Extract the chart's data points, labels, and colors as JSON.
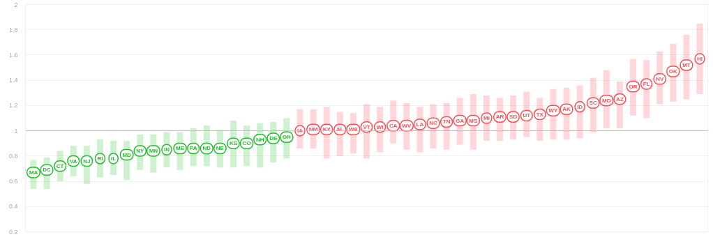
{
  "chart_data": {
    "type": "scatter",
    "categories": [
      "MA",
      "DC",
      "CT",
      "VA",
      "NJ",
      "RI",
      "IL",
      "MD",
      "NY",
      "MN",
      "IN",
      "ME",
      "PA",
      "ND",
      "NE",
      "KS",
      "CO",
      "NH",
      "DE",
      "OH",
      "IA",
      "NM",
      "KY",
      "AL",
      "WA",
      "VT",
      "WI",
      "CA",
      "WV",
      "LA",
      "NC",
      "TN",
      "GA",
      "MS",
      "MI",
      "AR",
      "SD",
      "UT",
      "TX",
      "WY",
      "AK",
      "ID",
      "SC",
      "MO",
      "AZ",
      "OR",
      "FL",
      "NV",
      "OK",
      "MT",
      "HI"
    ],
    "values": [
      0.67,
      0.69,
      0.72,
      0.76,
      0.76,
      0.78,
      0.78,
      0.81,
      0.84,
      0.84,
      0.85,
      0.86,
      0.86,
      0.86,
      0.86,
      0.9,
      0.9,
      0.93,
      0.94,
      0.95,
      1.0,
      1.01,
      1.01,
      1.01,
      1.01,
      1.03,
      1.03,
      1.04,
      1.04,
      1.05,
      1.06,
      1.07,
      1.08,
      1.08,
      1.1,
      1.11,
      1.11,
      1.12,
      1.13,
      1.16,
      1.17,
      1.19,
      1.22,
      1.24,
      1.25,
      1.35,
      1.37,
      1.41,
      1.47,
      1.52,
      1.57
    ],
    "errors": [
      [
        0.54,
        0.77
      ],
      [
        0.54,
        0.79
      ],
      [
        0.6,
        0.84
      ],
      [
        0.64,
        0.88
      ],
      [
        0.58,
        0.88
      ],
      [
        0.63,
        0.93
      ],
      [
        0.65,
        0.92
      ],
      [
        0.61,
        0.92
      ],
      [
        0.69,
        0.97
      ],
      [
        0.67,
        0.97
      ],
      [
        0.71,
        0.99
      ],
      [
        0.69,
        0.99
      ],
      [
        0.72,
        1.02
      ],
      [
        0.72,
        1.04
      ],
      [
        0.71,
        1.0
      ],
      [
        0.71,
        1.08
      ],
      [
        0.72,
        1.04
      ],
      [
        0.71,
        1.06
      ],
      [
        0.75,
        1.07
      ],
      [
        0.78,
        1.1
      ],
      [
        0.86,
        1.17
      ],
      [
        0.86,
        1.17
      ],
      [
        0.78,
        1.19
      ],
      [
        0.8,
        1.15
      ],
      [
        0.82,
        1.14
      ],
      [
        0.78,
        1.21
      ],
      [
        0.83,
        1.19
      ],
      [
        0.9,
        1.24
      ],
      [
        0.85,
        1.22
      ],
      [
        0.83,
        1.19
      ],
      [
        0.86,
        1.21
      ],
      [
        0.85,
        1.22
      ],
      [
        0.89,
        1.26
      ],
      [
        0.85,
        1.29
      ],
      [
        0.92,
        1.28
      ],
      [
        0.92,
        1.26
      ],
      [
        0.93,
        1.28
      ],
      [
        0.95,
        1.31
      ],
      [
        0.92,
        1.26
      ],
      [
        0.93,
        1.33
      ],
      [
        0.93,
        1.34
      ],
      [
        0.94,
        1.36
      ],
      [
        0.99,
        1.42
      ],
      [
        1.02,
        1.48
      ],
      [
        1.02,
        1.39
      ],
      [
        1.12,
        1.57
      ],
      [
        1.1,
        1.56
      ],
      [
        1.21,
        1.63
      ],
      [
        1.23,
        1.69
      ],
      [
        1.25,
        1.76
      ],
      [
        1.29,
        1.85
      ]
    ],
    "colors": [
      "#1fbf2a",
      "#1fbf2a",
      "#1fbf2a",
      "#1fbf2a",
      "#1fbf2a",
      "#1fbf2a",
      "#1fbf2a",
      "#1fbf2a",
      "#1fbf2a",
      "#1fbf2a",
      "#1fbf2a",
      "#1fbf2a",
      "#1fbf2a",
      "#1fbf2a",
      "#1fbf2a",
      "#1fbf2a",
      "#1fbf2a",
      "#1fbf2a",
      "#1fbf2a",
      "#1fbf2a",
      "#ff4b55",
      "#ff4b55",
      "#ff4b55",
      "#ff4b55",
      "#ff4b55",
      "#ff4b55",
      "#ff4b55",
      "#ff4b55",
      "#ff4b55",
      "#ff4b55",
      "#ff4b55",
      "#ff4b55",
      "#ff4b55",
      "#ff4b55",
      "#ff4b55",
      "#ff4b55",
      "#ff4b55",
      "#ff4b55",
      "#ff4b55",
      "#ff4b55",
      "#ff4b55",
      "#ff4b55",
      "#ff4b55",
      "#ff4b55",
      "#ff4b55",
      "#ff4b55",
      "#ff4b55",
      "#ff4b55",
      "#ff4b55",
      "#ff4b55",
      "#ff4b55"
    ],
    "ylim": [
      0.2,
      2
    ],
    "yticks": [
      0.2,
      0.4,
      0.6,
      0.8,
      1,
      1.2,
      1.4,
      1.6,
      1.8,
      2
    ],
    "ref_lines": [
      {
        "axis": "y",
        "value": 1,
        "color": "#f4a8ab"
      }
    ],
    "grid": "y",
    "tick_labels": "y"
  }
}
